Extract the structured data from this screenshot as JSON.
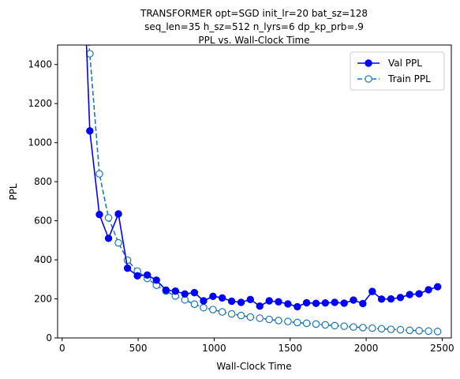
{
  "chart_data": {
    "type": "line",
    "title_lines": [
      "TRANSFORMER opt=SGD init_lr=20 bat_sz=128",
      "seq_len=35 h_sz=512 n_lyrs=6 dp_kp_prb=.9",
      "PPL vs. Wall-Clock Time"
    ],
    "xlabel": "Wall-Clock Time",
    "ylabel": "PPL",
    "xlim": [
      -30,
      2560
    ],
    "ylim": [
      0,
      1500
    ],
    "xticks": [
      0,
      500,
      1000,
      1500,
      2000,
      2500
    ],
    "yticks": [
      0,
      200,
      400,
      600,
      800,
      1000,
      1200,
      1400
    ],
    "grid": false,
    "legend_position": "top-right",
    "series": [
      {
        "name": "Val PPL",
        "color": "#0000ff",
        "line_style": "solid",
        "marker": "filled-circle",
        "points": [
          [
            150,
            1700
          ],
          [
            182,
            1060
          ],
          [
            245,
            632
          ],
          [
            305,
            510
          ],
          [
            370,
            635
          ],
          [
            430,
            357
          ],
          [
            495,
            318
          ],
          [
            560,
            322
          ],
          [
            620,
            296
          ],
          [
            683,
            245
          ],
          [
            745,
            240
          ],
          [
            807,
            225
          ],
          [
            870,
            232
          ],
          [
            930,
            190
          ],
          [
            992,
            213
          ],
          [
            1053,
            205
          ],
          [
            1115,
            188
          ],
          [
            1177,
            182
          ],
          [
            1238,
            197
          ],
          [
            1300,
            163
          ],
          [
            1362,
            190
          ],
          [
            1423,
            185
          ],
          [
            1485,
            174
          ],
          [
            1547,
            160
          ],
          [
            1608,
            180
          ],
          [
            1670,
            177
          ],
          [
            1731,
            179
          ],
          [
            1793,
            182
          ],
          [
            1855,
            178
          ],
          [
            1916,
            194
          ],
          [
            1978,
            176
          ],
          [
            2040,
            238
          ],
          [
            2101,
            199
          ],
          [
            2163,
            200
          ],
          [
            2225,
            207
          ],
          [
            2286,
            222
          ],
          [
            2348,
            226
          ],
          [
            2410,
            247
          ],
          [
            2470,
            262
          ]
        ]
      },
      {
        "name": "Train PPL",
        "color": "#1f77b4",
        "line_style": "dashed",
        "marker": "open-circle",
        "points": [
          [
            150,
            1700
          ],
          [
            182,
            1455
          ],
          [
            245,
            840
          ],
          [
            305,
            615
          ],
          [
            370,
            487
          ],
          [
            430,
            398
          ],
          [
            495,
            342
          ],
          [
            560,
            305
          ],
          [
            620,
            270
          ],
          [
            683,
            240
          ],
          [
            745,
            215
          ],
          [
            807,
            195
          ],
          [
            870,
            173
          ],
          [
            930,
            155
          ],
          [
            992,
            145
          ],
          [
            1053,
            133
          ],
          [
            1115,
            123
          ],
          [
            1177,
            115
          ],
          [
            1238,
            107
          ],
          [
            1300,
            101
          ],
          [
            1362,
            95
          ],
          [
            1423,
            89
          ],
          [
            1485,
            84
          ],
          [
            1547,
            79
          ],
          [
            1608,
            75
          ],
          [
            1670,
            71
          ],
          [
            1731,
            67
          ],
          [
            1793,
            63
          ],
          [
            1855,
            60
          ],
          [
            1916,
            56
          ],
          [
            1978,
            53
          ],
          [
            2040,
            50
          ],
          [
            2101,
            47
          ],
          [
            2163,
            44
          ],
          [
            2225,
            42
          ],
          [
            2286,
            39
          ],
          [
            2348,
            37
          ],
          [
            2410,
            35
          ],
          [
            2470,
            33
          ]
        ]
      }
    ]
  }
}
